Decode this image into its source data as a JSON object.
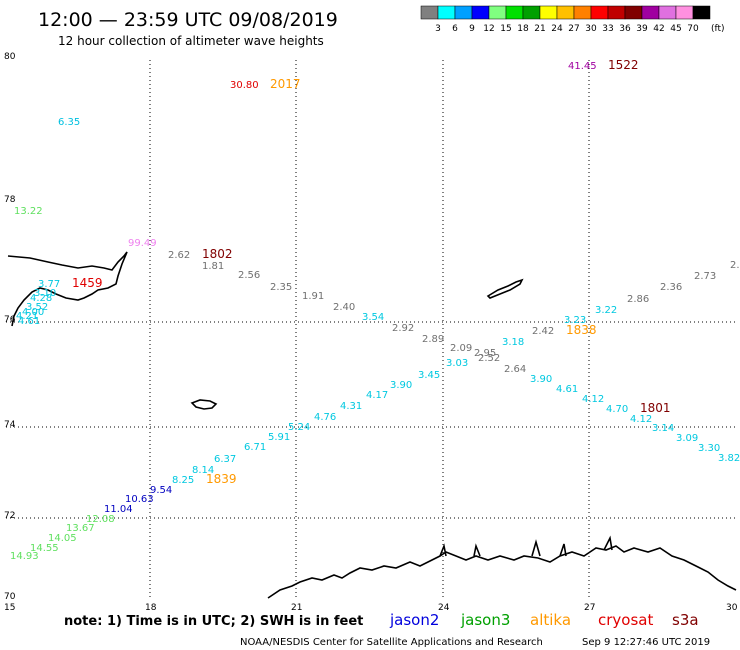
{
  "header": {
    "title": "12:00 — 23:59 UTC 09/08/2019",
    "subtitle": "12 hour collection of altimeter wave heights"
  },
  "legend": {
    "unit": "(ft)",
    "bins": [
      {
        "label": "3",
        "color": "#808080"
      },
      {
        "label": "6",
        "color": "#00ffff"
      },
      {
        "label": "9",
        "color": "#00a0ff"
      },
      {
        "label": "12",
        "color": "#0000ff"
      },
      {
        "label": "15",
        "color": "#80ff80"
      },
      {
        "label": "18",
        "color": "#00e000"
      },
      {
        "label": "21",
        "color": "#00a000"
      },
      {
        "label": "24",
        "color": "#ffff00"
      },
      {
        "label": "27",
        "color": "#ffc000"
      },
      {
        "label": "30",
        "color": "#ff8000"
      },
      {
        "label": "33",
        "color": "#ff0000"
      },
      {
        "label": "36",
        "color": "#c00000"
      },
      {
        "label": "39",
        "color": "#800000"
      },
      {
        "label": "42",
        "color": "#a000a0"
      },
      {
        "label": "45",
        "color": "#e070e0"
      },
      {
        "label": "70",
        "color": "#ff90e0"
      },
      {
        "label": "",
        "color": "#000000"
      }
    ]
  },
  "axes": {
    "lat_labels": [
      "80",
      "78",
      "76",
      "74",
      "72",
      "70"
    ],
    "lon_labels": [
      "15",
      "18",
      "21",
      "24",
      "27",
      "30"
    ]
  },
  "observations": [
    {
      "text": "41.45",
      "color": "#a000a0"
    },
    {
      "text": "30.80",
      "color": "#e00000"
    },
    {
      "text": "6.35",
      "color": "#00c0e0"
    },
    {
      "text": "13.22",
      "color": "#60e060"
    },
    {
      "text": "99.49",
      "color": "#ee82ee"
    },
    {
      "text": "2.62",
      "color": "#707070"
    },
    {
      "text": "1.81",
      "color": "#707070"
    },
    {
      "text": "2.56",
      "color": "#707070"
    },
    {
      "text": "2.35",
      "color": "#707070"
    },
    {
      "text": "1.91",
      "color": "#707070"
    },
    {
      "text": "2.40",
      "color": "#707070"
    },
    {
      "text": "2.92",
      "color": "#707070"
    },
    {
      "text": "2.89",
      "color": "#707070"
    },
    {
      "text": "2.09",
      "color": "#707070"
    },
    {
      "text": "2.95",
      "color": "#707070"
    },
    {
      "text": "2.52",
      "color": "#707070"
    },
    {
      "text": "2.64",
      "color": "#707070"
    },
    {
      "text": "2.42",
      "color": "#707070"
    },
    {
      "text": "2.86",
      "color": "#707070"
    },
    {
      "text": "2.36",
      "color": "#707070"
    },
    {
      "text": "2.73",
      "color": "#707070"
    },
    {
      "text": "2.",
      "color": "#707070"
    },
    {
      "text": "3.77",
      "color": "#00c8e0"
    },
    {
      "text": "3.10",
      "color": "#00c8e0"
    },
    {
      "text": "4.28",
      "color": "#00c8e0"
    },
    {
      "text": "3.52",
      "color": "#00c8e0"
    },
    {
      "text": "4.00",
      "color": "#00c8e0"
    },
    {
      "text": "4.21",
      "color": "#00c8e0"
    },
    {
      "text": "4.61",
      "color": "#00c8e0"
    },
    {
      "text": "3.54",
      "color": "#00c8e0"
    },
    {
      "text": "3.18",
      "color": "#00c8e0"
    },
    {
      "text": "3.23",
      "color": "#00c8e0"
    },
    {
      "text": "3.22",
      "color": "#00c8e0"
    },
    {
      "text": "3.03",
      "color": "#00c8e0"
    },
    {
      "text": "3.45",
      "color": "#00c8e0"
    },
    {
      "text": "3.90",
      "color": "#00c8e0"
    },
    {
      "text": "4.17",
      "color": "#00c8e0"
    },
    {
      "text": "4.31",
      "color": "#00c8e0"
    },
    {
      "text": "4.76",
      "color": "#00c8e0"
    },
    {
      "text": "5.24",
      "color": "#00c8e0"
    },
    {
      "text": "5.91",
      "color": "#00c8e0"
    },
    {
      "text": "6.71",
      "color": "#00c8e0"
    },
    {
      "text": "6.37",
      "color": "#00c8e0"
    },
    {
      "text": "8.14",
      "color": "#00c8e0"
    },
    {
      "text": "8.25",
      "color": "#00c8e0"
    },
    {
      "text": "3.90",
      "color": "#00c8e0"
    },
    {
      "text": "4.61",
      "color": "#00c8e0"
    },
    {
      "text": "4.12",
      "color": "#00c8e0"
    },
    {
      "text": "4.70",
      "color": "#00c8e0"
    },
    {
      "text": "4.12",
      "color": "#00c8e0"
    },
    {
      "text": "3.14",
      "color": "#00c8e0"
    },
    {
      "text": "3.09",
      "color": "#00c8e0"
    },
    {
      "text": "3.30",
      "color": "#00c8e0"
    },
    {
      "text": "3.82",
      "color": "#00c8e0"
    },
    {
      "text": "9.54",
      "color": "#0000c0"
    },
    {
      "text": "10.63",
      "color": "#0000c0"
    },
    {
      "text": "11.04",
      "color": "#0000c0"
    },
    {
      "text": "12.08",
      "color": "#60e060"
    },
    {
      "text": "13.67",
      "color": "#60e060"
    },
    {
      "text": "14.05",
      "color": "#60e060"
    },
    {
      "text": "14.55",
      "color": "#60e060"
    },
    {
      "text": "14.93",
      "color": "#60e060"
    }
  ],
  "pass_times": [
    {
      "text": "1522",
      "color": "#800000"
    },
    {
      "text": "2017",
      "color": "#ff9900"
    },
    {
      "text": "1802",
      "color": "#800000"
    },
    {
      "text": "1459",
      "color": "#e00000"
    },
    {
      "text": "1838",
      "color": "#ff9900"
    },
    {
      "text": "1801",
      "color": "#800000"
    },
    {
      "text": "1839",
      "color": "#ff9900"
    }
  ],
  "footer": {
    "note": "note: 1) Time is in UTC; 2) SWH is in feet",
    "satellites": [
      {
        "name": "jason2",
        "color": "#0000dd"
      },
      {
        "name": "jason3",
        "color": "#00a000"
      },
      {
        "name": "altika",
        "color": "#ff9900"
      },
      {
        "name": "cryosat",
        "color": "#e00000"
      },
      {
        "name": "s3a",
        "color": "#800000"
      }
    ],
    "credit": "NOAA/NESDIS Center for Satellite Applications and Research",
    "timestamp": "Sep  9 12:27:46 UTC 2019"
  }
}
